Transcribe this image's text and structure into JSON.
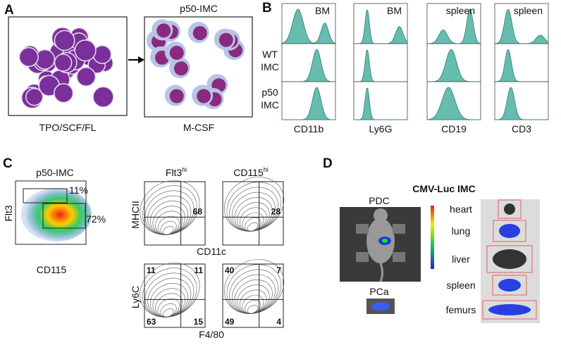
{
  "panels": {
    "a": {
      "label": "A",
      "left_caption": "TPO/SCF/FL",
      "right_title": "p50-IMC",
      "right_caption": "M-CSF"
    },
    "b": {
      "label": "B",
      "column_headers": [
        "BM",
        "BM",
        "spleen",
        "spleen"
      ],
      "row_labels": [
        [
          "WT",
          "IMC"
        ],
        [
          "p50",
          "IMC"
        ]
      ],
      "markers": [
        "CD11b",
        "Ly6G",
        "CD19",
        "CD3"
      ]
    },
    "c": {
      "label": "C",
      "dot_plot_title": "p50-IMC",
      "gate_upper": "11%",
      "gate_lower": "72%",
      "dot_y_axis": "Flt3",
      "dot_x_axis": "CD115",
      "contour_headers": [
        {
          "base": "Flt3",
          "sup": "hi"
        },
        {
          "base": "CD115",
          "sup": "hi"
        }
      ],
      "top_y_axis": "MHCII",
      "top_x_axis": "CD11c",
      "top_values": [
        "68",
        "28"
      ],
      "bottom_y_axis": "Ly6C",
      "bottom_x_axis": "F4/80",
      "bottom_quadrants": [
        [
          "11",
          "11",
          "63",
          "15"
        ],
        [
          "40",
          "7",
          "49",
          "4"
        ]
      ]
    },
    "d": {
      "label": "D",
      "title": "CMV-Luc IMC",
      "mouse_label": "PDC",
      "tumor_label": "PCa",
      "organs": [
        "heart",
        "lung",
        "liver",
        "spleen",
        "femurs"
      ]
    }
  }
}
